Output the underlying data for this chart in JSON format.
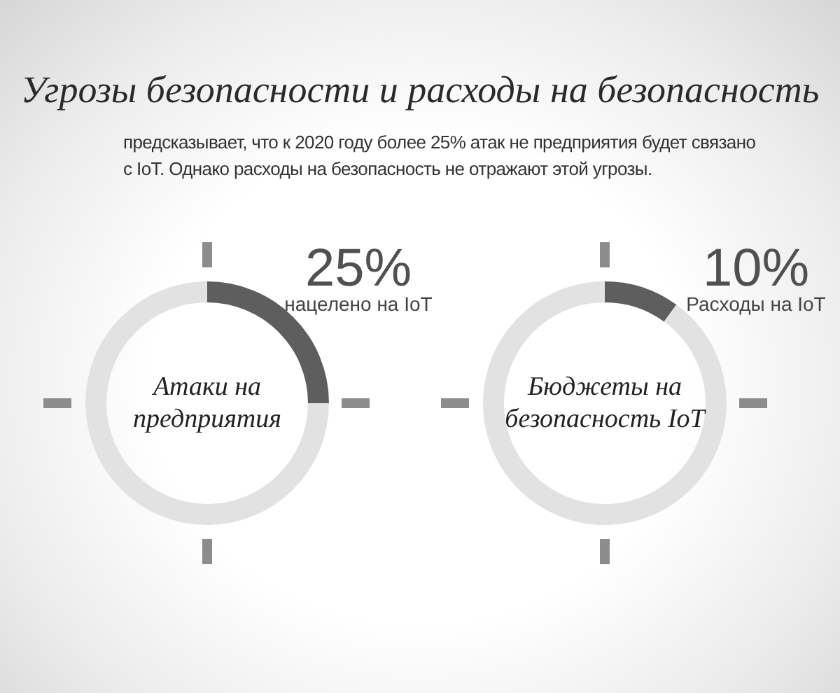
{
  "chart_data": [
    {
      "type": "donut",
      "title": "Угрозы безопасности и расходы на безопасность",
      "subtitle": "предсказывает, что к 2020 году более 25% атак не предприятия будет связано с IoT. Однако расходы на безопасность не отражают этой угрозы.",
      "categories": [
        "нацелено на IoT",
        null
      ],
      "values": [
        25,
        75
      ],
      "colors": [
        "#5e5e5e",
        "#e2e2e2"
      ],
      "value_labels": [
        "25%",
        null
      ],
      "annotations": [
        "Атаки на предприятия"
      ]
    },
    {
      "type": "donut",
      "categories": [
        "Расходы на IoT",
        null
      ],
      "values": [
        10,
        90
      ],
      "colors": [
        "#5e5e5e",
        "#e2e2e2"
      ],
      "value_labels": [
        "10%",
        null
      ],
      "annotations": [
        "Бюджеты на безопасность IoT"
      ]
    }
  ]
}
